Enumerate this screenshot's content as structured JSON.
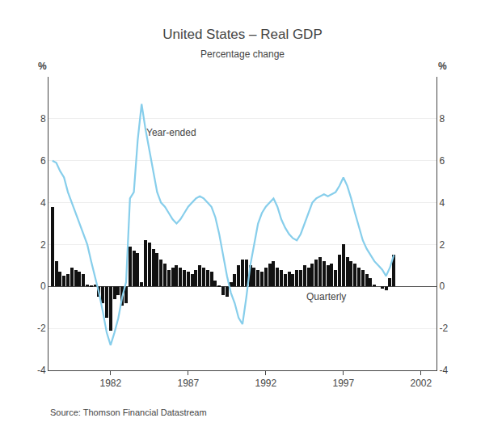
{
  "chart_data": {
    "type": "bar",
    "title": "United States – Real GDP",
    "subtitle": "Percentage change",
    "source": "Source: Thomson Financial Datastream",
    "ylabel": "%",
    "y2label": "%",
    "annotations": [
      "Year-ended",
      "Quarterly"
    ],
    "x": [
      1978.25,
      1978.5,
      1978.75,
      1979,
      1979.25,
      1979.5,
      1979.75,
      1980,
      1980.25,
      1980.5,
      1980.75,
      1981,
      1981.25,
      1981.5,
      1981.75,
      1982,
      1982.25,
      1982.5,
      1982.75,
      1983,
      1983.25,
      1983.5,
      1983.75,
      1984,
      1984.25,
      1984.5,
      1984.75,
      1985,
      1985.25,
      1985.5,
      1985.75,
      1986,
      1986.25,
      1986.5,
      1986.75,
      1987,
      1987.25,
      1987.5,
      1987.75,
      1988,
      1988.25,
      1988.5,
      1988.75,
      1989,
      1989.25,
      1989.5,
      1989.75,
      1990,
      1990.25,
      1990.5,
      1990.75,
      1991,
      1991.25,
      1991.5,
      1991.75,
      1992,
      1992.25,
      1992.5,
      1992.75,
      1993,
      1993.25,
      1993.5,
      1993.75,
      1994,
      1994.25,
      1994.5,
      1994.75,
      1995,
      1995.25,
      1995.5,
      1995.75,
      1996,
      1996.25,
      1996.5,
      1996.75,
      1997,
      1997.25,
      1997.5,
      1997.75,
      1998,
      1998.25,
      1998.5,
      1998.75,
      1999,
      1999.25,
      1999.5,
      1999.75,
      2000,
      2000.25
    ],
    "series": [
      {
        "type": "bar",
        "color": "#111111",
        "values": [
          3.8,
          1.2,
          0.7,
          0.5,
          0.6,
          0.9,
          0.8,
          0.7,
          0.6,
          0.1,
          0.05,
          0.1,
          -0.5,
          -0.8,
          -1.5,
          -2.1,
          -0.6,
          -0.4,
          -0.9,
          -0.8,
          1.9,
          1.7,
          1.6,
          0.2,
          2.2,
          2.1,
          1.8,
          1.6,
          1.3,
          1.1,
          0.8,
          0.9,
          1.0,
          0.9,
          0.8,
          0.7,
          0.6,
          0.8,
          1.0,
          0.9,
          0.8,
          0.7,
          0.3,
          0.05,
          -0.4,
          -0.5,
          0.2,
          0.6,
          1.0,
          1.3,
          1.3,
          1.0,
          0.9,
          0.8,
          0.7,
          0.9,
          1.1,
          1.2,
          0.9,
          0.8,
          0.6,
          0.7,
          0.6,
          0.8,
          0.8,
          1.0,
          0.9,
          1.1,
          1.3,
          1.4,
          1.2,
          1.0,
          1.1,
          0.8,
          1.5,
          2.0,
          1.4,
          1.2,
          1.1,
          0.9,
          0.8,
          0.6,
          0.4,
          0.1,
          0.0,
          -0.1,
          -0.2,
          0.4,
          1.5
        ]
      },
      {
        "type": "line",
        "color": "#87ceeb",
        "values": [
          6.0,
          5.9,
          5.5,
          5.2,
          4.5,
          4.0,
          3.5,
          3.0,
          2.5,
          2.0,
          1.2,
          0.5,
          -0.3,
          -1.2,
          -2.2,
          -2.8,
          -2.2,
          -1.5,
          -0.5,
          0.2,
          4.2,
          4.5,
          7.0,
          8.7,
          7.5,
          6.5,
          5.5,
          4.5,
          4.0,
          3.8,
          3.5,
          3.2,
          3.0,
          3.2,
          3.5,
          3.8,
          4.0,
          4.2,
          4.3,
          4.2,
          4.0,
          3.8,
          3.3,
          2.5,
          1.5,
          0.5,
          -0.3,
          -0.8,
          -1.5,
          -1.8,
          -0.5,
          1.0,
          2.0,
          3.0,
          3.5,
          3.8,
          4.0,
          4.2,
          3.8,
          3.2,
          2.8,
          2.5,
          2.3,
          2.2,
          2.5,
          3.0,
          3.5,
          4.0,
          4.2,
          4.3,
          4.4,
          4.3,
          4.4,
          4.5,
          4.8,
          5.2,
          4.8,
          4.2,
          3.5,
          2.8,
          2.2,
          1.8,
          1.5,
          1.2,
          1.0,
          0.8,
          0.5,
          0.9,
          1.5
        ]
      }
    ],
    "xlim": [
      1978,
      2003
    ],
    "xticks": [
      1982,
      1987,
      1992,
      1997,
      2002
    ],
    "ylim": [
      -4,
      10
    ],
    "yticks": [
      -4,
      -2,
      0,
      2,
      4,
      6,
      8
    ],
    "y2lim": [
      -4,
      10
    ],
    "y2ticks": [
      -4,
      -2,
      0,
      2,
      4,
      6,
      8
    ],
    "grid": true
  }
}
